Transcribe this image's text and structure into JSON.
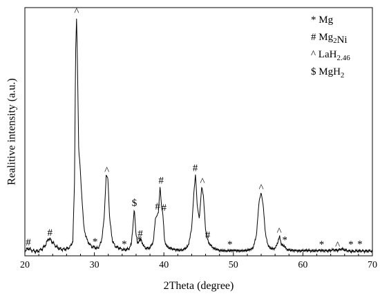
{
  "chart_data": {
    "type": "line",
    "title": "",
    "xlabel": "2Theta (degree)",
    "ylabel": "Realitive intensity (a.u.)",
    "xlim": [
      20,
      70
    ],
    "xticks": [
      20,
      30,
      40,
      50,
      60,
      70
    ],
    "xtick_labels": [
      "20",
      "30",
      "40",
      "50",
      "60",
      "70"
    ],
    "ylim": [
      0,
      1000
    ],
    "y_tick_labels_shown": false,
    "grid": false,
    "legend_position": "top-right",
    "legend": [
      {
        "symbol": "*",
        "label": "Mg",
        "formula": [
          {
            "t": "Mg"
          }
        ]
      },
      {
        "symbol": "#",
        "label": "Mg2Ni",
        "formula": [
          {
            "t": "Mg"
          },
          {
            "t": "2",
            "sub": true
          },
          {
            "t": "Ni"
          }
        ]
      },
      {
        "symbol": "^",
        "label": "LaH2.46",
        "formula": [
          {
            "t": "LaH"
          },
          {
            "t": "2.46",
            "sub": true
          }
        ]
      },
      {
        "symbol": "$",
        "label": "MgH2",
        "formula": [
          {
            "t": "MgH"
          },
          {
            "t": "2",
            "sub": true
          }
        ]
      }
    ],
    "series": [
      {
        "points": [
          [
            20.0,
            20
          ],
          [
            20.5,
            30
          ],
          [
            21.0,
            22
          ],
          [
            21.5,
            18
          ],
          [
            22.0,
            20
          ],
          [
            22.5,
            28
          ],
          [
            23.0,
            45
          ],
          [
            23.4,
            70
          ],
          [
            23.7,
            65
          ],
          [
            24.1,
            50
          ],
          [
            24.6,
            35
          ],
          [
            25.0,
            28
          ],
          [
            25.5,
            26
          ],
          [
            26.0,
            28
          ],
          [
            26.5,
            35
          ],
          [
            26.9,
            60
          ],
          [
            27.15,
            300
          ],
          [
            27.3,
            820
          ],
          [
            27.45,
            965
          ],
          [
            27.6,
            700
          ],
          [
            27.75,
            420
          ],
          [
            27.9,
            380
          ],
          [
            28.1,
            280
          ],
          [
            28.5,
            110
          ],
          [
            29.0,
            60
          ],
          [
            29.5,
            40
          ],
          [
            30.0,
            34
          ],
          [
            30.5,
            30
          ],
          [
            31.0,
            55
          ],
          [
            31.4,
            150
          ],
          [
            31.7,
            325
          ],
          [
            31.95,
            310
          ],
          [
            32.2,
            150
          ],
          [
            32.6,
            60
          ],
          [
            33.0,
            38
          ],
          [
            33.5,
            32
          ],
          [
            34.0,
            26
          ],
          [
            34.5,
            24
          ],
          [
            35.0,
            30
          ],
          [
            35.3,
            45
          ],
          [
            35.55,
            120
          ],
          [
            35.75,
            190
          ],
          [
            35.95,
            100
          ],
          [
            36.2,
            48
          ],
          [
            36.5,
            65
          ],
          [
            36.8,
            60
          ],
          [
            37.1,
            38
          ],
          [
            37.5,
            30
          ],
          [
            38.0,
            32
          ],
          [
            38.5,
            60
          ],
          [
            38.8,
            155
          ],
          [
            39.0,
            160
          ],
          [
            39.2,
            175
          ],
          [
            39.45,
            280
          ],
          [
            39.65,
            200
          ],
          [
            39.85,
            170
          ],
          [
            40.1,
            60
          ],
          [
            40.5,
            35
          ],
          [
            41.0,
            30
          ],
          [
            41.5,
            25
          ],
          [
            42.0,
            24
          ],
          [
            42.5,
            22
          ],
          [
            43.0,
            28
          ],
          [
            43.5,
            40
          ],
          [
            44.0,
            110
          ],
          [
            44.3,
            250
          ],
          [
            44.55,
            330
          ],
          [
            44.8,
            200
          ],
          [
            45.1,
            150
          ],
          [
            45.45,
            280
          ],
          [
            45.7,
            240
          ],
          [
            46.0,
            100
          ],
          [
            46.4,
            55
          ],
          [
            46.8,
            40
          ],
          [
            47.2,
            30
          ],
          [
            48.0,
            22
          ],
          [
            49.0,
            20
          ],
          [
            50.0,
            22
          ],
          [
            51.0,
            20
          ],
          [
            52.0,
            22
          ],
          [
            52.8,
            30
          ],
          [
            53.3,
            80
          ],
          [
            53.7,
            220
          ],
          [
            54.0,
            255
          ],
          [
            54.3,
            200
          ],
          [
            54.6,
            90
          ],
          [
            55.0,
            40
          ],
          [
            55.5,
            28
          ],
          [
            56.0,
            30
          ],
          [
            56.4,
            55
          ],
          [
            56.65,
            80
          ],
          [
            56.9,
            45
          ],
          [
            57.3,
            40
          ],
          [
            57.7,
            25
          ],
          [
            58.5,
            22
          ],
          [
            59.5,
            20
          ],
          [
            60.5,
            22
          ],
          [
            61.5,
            20
          ],
          [
            62.5,
            22
          ],
          [
            63.5,
            20
          ],
          [
            64.5,
            24
          ],
          [
            65.0,
            22
          ],
          [
            65.6,
            28
          ],
          [
            66.2,
            22
          ],
          [
            67.0,
            18
          ],
          [
            68.0,
            20
          ],
          [
            69.0,
            19
          ],
          [
            70.0,
            20
          ]
        ]
      }
    ],
    "annotations": [
      {
        "text": "#",
        "x": 20.5,
        "y": 30
      },
      {
        "text": "#",
        "x": 23.6,
        "y": 70
      },
      {
        "text": "^",
        "x": 27.45,
        "y": 965
      },
      {
        "text": "*",
        "x": 30.1,
        "y": 34
      },
      {
        "text": "^",
        "x": 31.8,
        "y": 325
      },
      {
        "text": "*",
        "x": 34.3,
        "y": 24
      },
      {
        "text": "$",
        "x": 35.75,
        "y": 190
      },
      {
        "text": "#",
        "x": 36.6,
        "y": 65
      },
      {
        "text": "*",
        "x": 36.5,
        "y": 40
      },
      {
        "text": "#",
        "x": 39.1,
        "y": 175
      },
      {
        "text": "#",
        "x": 39.6,
        "y": 280
      },
      {
        "text": "#",
        "x": 40.0,
        "y": 170
      },
      {
        "text": "#",
        "x": 44.5,
        "y": 330
      },
      {
        "text": "^",
        "x": 45.55,
        "y": 280
      },
      {
        "text": "#",
        "x": 46.3,
        "y": 60
      },
      {
        "text": "*",
        "x": 49.5,
        "y": 22
      },
      {
        "text": "^",
        "x": 54.0,
        "y": 255
      },
      {
        "text": "^",
        "x": 56.6,
        "y": 80
      },
      {
        "text": "*",
        "x": 57.4,
        "y": 40
      },
      {
        "text": "*",
        "x": 62.7,
        "y": 22
      },
      {
        "text": "^",
        "x": 65.0,
        "y": 24
      },
      {
        "text": "*",
        "x": 66.9,
        "y": 22
      },
      {
        "text": "*",
        "x": 68.2,
        "y": 24
      }
    ]
  }
}
